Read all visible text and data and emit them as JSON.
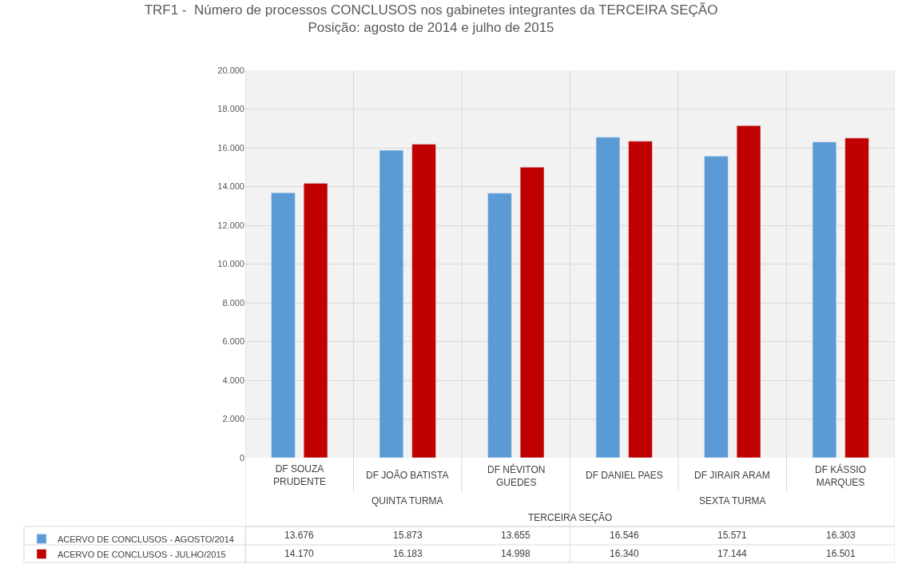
{
  "chart_data": {
    "type": "bar",
    "title": "TRF1 -  Número de processos CONCLUSOS nos gabinetes integrantes da TERCEIRA SEÇÃO",
    "subtitle": "Posição: agosto de 2014 e julho de 2015",
    "categories": [
      "DF SOUZA PRUDENTE",
      "DF JOÃO BATISTA",
      "DF NÉVITON GUEDES",
      "DF DANIEL PAES",
      "DF JIRAIR ARAM",
      "DF KÁSSIO MARQUES"
    ],
    "series": [
      {
        "name": "ACERVO DE CONCLUSOS - AGOSTO/2014",
        "color": "#5b9bd5",
        "values": [
          13676,
          15873,
          13655,
          16546,
          15571,
          16303
        ]
      },
      {
        "name": "ACERVO DE CONCLUSOS - JULHO/2015",
        "color": "#c00000",
        "values": [
          14170,
          16183,
          14998,
          16340,
          17144,
          16501
        ]
      }
    ],
    "value_labels": [
      [
        "13.676",
        "15.873",
        "13.655",
        "16.546",
        "15.571",
        "16.303"
      ],
      [
        "14.170",
        "16.183",
        "14.998",
        "16.340",
        "17.144",
        "16.501"
      ]
    ],
    "annotations": [
      "QUINTA TURMA",
      "SEXTA TURMA",
      "TERCEIRA SEÇÃO"
    ],
    "ylim": [
      0,
      20000
    ],
    "yticks": [
      {
        "value": 0,
        "label": "0"
      },
      {
        "value": 2000,
        "label": "2.000"
      },
      {
        "value": 4000,
        "label": "4.000"
      },
      {
        "value": 6000,
        "label": "6.000"
      },
      {
        "value": 8000,
        "label": "8.000"
      },
      {
        "value": 10000,
        "label": "10.000"
      },
      {
        "value": 12000,
        "label": "12.000"
      },
      {
        "value": 14000,
        "label": "14.000"
      },
      {
        "value": 16000,
        "label": "16.000"
      },
      {
        "value": 18000,
        "label": "18.000"
      },
      {
        "value": 20000,
        "label": "20.000"
      }
    ],
    "grid": true,
    "legend": "bottom left"
  }
}
